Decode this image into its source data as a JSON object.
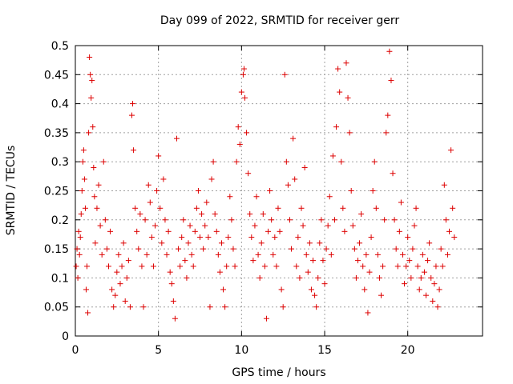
{
  "chart_data": {
    "type": "scatter",
    "title": "Day 099 of 2022, SRMTID for receiver gerr",
    "xlabel": "GPS time / hours",
    "ylabel": "SRMTID / TECUs",
    "xlim": [
      0,
      24.5
    ],
    "ylim": [
      0,
      0.5
    ],
    "xticks": [
      0,
      5,
      10,
      15,
      20
    ],
    "xtick_labels": [
      "0",
      "5",
      "10",
      "15",
      "20"
    ],
    "yticks": [
      0,
      0.05,
      0.1,
      0.15,
      0.2,
      0.25,
      0.3,
      0.35,
      0.4,
      0.45,
      0.5
    ],
    "ytick_labels": [
      "0",
      "0.05",
      "0.1",
      "0.15",
      "0.2",
      "0.25",
      "0.3",
      "0.35",
      "0.4",
      "0.45",
      "0.5"
    ],
    "grid": true,
    "marker": "+",
    "color": "#dd0000",
    "series": [
      {
        "name": "SRMTID",
        "points": [
          [
            0.05,
            0.12
          ],
          [
            0.1,
            0.15
          ],
          [
            0.15,
            0.1
          ],
          [
            0.2,
            0.18
          ],
          [
            0.25,
            0.14
          ],
          [
            0.3,
            0.17
          ],
          [
            0.35,
            0.21
          ],
          [
            0.4,
            0.25
          ],
          [
            0.45,
            0.3
          ],
          [
            0.5,
            0.32
          ],
          [
            0.55,
            0.27
          ],
          [
            0.6,
            0.22
          ],
          [
            0.65,
            0.08
          ],
          [
            0.7,
            0.12
          ],
          [
            0.75,
            0.04
          ],
          [
            0.8,
            0.35
          ],
          [
            0.85,
            0.48
          ],
          [
            0.9,
            0.45
          ],
          [
            0.95,
            0.41
          ],
          [
            1.0,
            0.44
          ],
          [
            1.05,
            0.36
          ],
          [
            1.1,
            0.29
          ],
          [
            1.15,
            0.24
          ],
          [
            1.2,
            0.16
          ],
          [
            1.3,
            0.22
          ],
          [
            1.4,
            0.26
          ],
          [
            1.5,
            0.19
          ],
          [
            1.6,
            0.14
          ],
          [
            1.7,
            0.3
          ],
          [
            1.8,
            0.2
          ],
          [
            1.9,
            0.15
          ],
          [
            2.0,
            0.12
          ],
          [
            2.1,
            0.18
          ],
          [
            2.2,
            0.08
          ],
          [
            2.3,
            0.05
          ],
          [
            2.4,
            0.07
          ],
          [
            2.5,
            0.11
          ],
          [
            2.6,
            0.14
          ],
          [
            2.7,
            0.09
          ],
          [
            2.8,
            0.12
          ],
          [
            2.9,
            0.16
          ],
          [
            3.0,
            0.06
          ],
          [
            3.1,
            0.1
          ],
          [
            3.2,
            0.13
          ],
          [
            3.3,
            0.05
          ],
          [
            3.4,
            0.38
          ],
          [
            3.45,
            0.4
          ],
          [
            3.5,
            0.32
          ],
          [
            3.6,
            0.22
          ],
          [
            3.7,
            0.18
          ],
          [
            3.8,
            0.15
          ],
          [
            3.9,
            0.21
          ],
          [
            4.0,
            0.12
          ],
          [
            4.1,
            0.05
          ],
          [
            4.2,
            0.2
          ],
          [
            4.3,
            0.14
          ],
          [
            4.4,
            0.26
          ],
          [
            4.5,
            0.23
          ],
          [
            4.6,
            0.17
          ],
          [
            4.7,
            0.12
          ],
          [
            4.8,
            0.19
          ],
          [
            4.9,
            0.25
          ],
          [
            5.0,
            0.31
          ],
          [
            5.1,
            0.22
          ],
          [
            5.2,
            0.16
          ],
          [
            5.3,
            0.27
          ],
          [
            5.4,
            0.2
          ],
          [
            5.5,
            0.14
          ],
          [
            5.6,
            0.18
          ],
          [
            5.7,
            0.11
          ],
          [
            5.8,
            0.09
          ],
          [
            5.9,
            0.06
          ],
          [
            6.0,
            0.03
          ],
          [
            6.1,
            0.34
          ],
          [
            6.2,
            0.15
          ],
          [
            6.3,
            0.12
          ],
          [
            6.4,
            0.17
          ],
          [
            6.5,
            0.2
          ],
          [
            6.6,
            0.13
          ],
          [
            6.7,
            0.1
          ],
          [
            6.8,
            0.16
          ],
          [
            6.9,
            0.19
          ],
          [
            7.0,
            0.14
          ],
          [
            7.1,
            0.12
          ],
          [
            7.2,
            0.18
          ],
          [
            7.3,
            0.22
          ],
          [
            7.4,
            0.25
          ],
          [
            7.5,
            0.17
          ],
          [
            7.6,
            0.21
          ],
          [
            7.7,
            0.15
          ],
          [
            7.8,
            0.19
          ],
          [
            7.9,
            0.23
          ],
          [
            8.0,
            0.17
          ],
          [
            8.1,
            0.05
          ],
          [
            8.2,
            0.27
          ],
          [
            8.3,
            0.3
          ],
          [
            8.4,
            0.21
          ],
          [
            8.5,
            0.18
          ],
          [
            8.6,
            0.14
          ],
          [
            8.7,
            0.11
          ],
          [
            8.8,
            0.16
          ],
          [
            8.9,
            0.08
          ],
          [
            9.0,
            0.05
          ],
          [
            9.1,
            0.12
          ],
          [
            9.2,
            0.17
          ],
          [
            9.3,
            0.24
          ],
          [
            9.4,
            0.2
          ],
          [
            9.5,
            0.15
          ],
          [
            9.6,
            0.12
          ],
          [
            9.7,
            0.3
          ],
          [
            9.8,
            0.36
          ],
          [
            9.9,
            0.33
          ],
          [
            10.0,
            0.42
          ],
          [
            10.1,
            0.45
          ],
          [
            10.15,
            0.46
          ],
          [
            10.2,
            0.41
          ],
          [
            10.3,
            0.35
          ],
          [
            10.4,
            0.28
          ],
          [
            10.5,
            0.21
          ],
          [
            10.6,
            0.17
          ],
          [
            10.7,
            0.13
          ],
          [
            10.8,
            0.19
          ],
          [
            10.9,
            0.24
          ],
          [
            11.0,
            0.14
          ],
          [
            11.1,
            0.1
          ],
          [
            11.2,
            0.16
          ],
          [
            11.3,
            0.21
          ],
          [
            11.4,
            0.12
          ],
          [
            11.5,
            0.03
          ],
          [
            11.6,
            0.18
          ],
          [
            11.7,
            0.25
          ],
          [
            11.8,
            0.2
          ],
          [
            11.9,
            0.14
          ],
          [
            12.0,
            0.17
          ],
          [
            12.1,
            0.12
          ],
          [
            12.2,
            0.22
          ],
          [
            12.3,
            0.18
          ],
          [
            12.4,
            0.08
          ],
          [
            12.5,
            0.05
          ],
          [
            12.6,
            0.45
          ],
          [
            12.7,
            0.3
          ],
          [
            12.8,
            0.26
          ],
          [
            12.9,
            0.2
          ],
          [
            13.0,
            0.15
          ],
          [
            13.1,
            0.34
          ],
          [
            13.2,
            0.27
          ],
          [
            13.3,
            0.12
          ],
          [
            13.4,
            0.17
          ],
          [
            13.5,
            0.1
          ],
          [
            13.6,
            0.22
          ],
          [
            13.7,
            0.19
          ],
          [
            13.8,
            0.29
          ],
          [
            13.9,
            0.14
          ],
          [
            14.0,
            0.11
          ],
          [
            14.1,
            0.16
          ],
          [
            14.2,
            0.08
          ],
          [
            14.3,
            0.13
          ],
          [
            14.4,
            0.07
          ],
          [
            14.5,
            0.05
          ],
          [
            14.6,
            0.1
          ],
          [
            14.7,
            0.16
          ],
          [
            14.8,
            0.2
          ],
          [
            14.9,
            0.13
          ],
          [
            15.0,
            0.09
          ],
          [
            15.1,
            0.15
          ],
          [
            15.2,
            0.19
          ],
          [
            15.3,
            0.24
          ],
          [
            15.4,
            0.14
          ],
          [
            15.5,
            0.31
          ],
          [
            15.6,
            0.2
          ],
          [
            15.7,
            0.36
          ],
          [
            15.8,
            0.46
          ],
          [
            15.9,
            0.42
          ],
          [
            16.0,
            0.3
          ],
          [
            16.1,
            0.22
          ],
          [
            16.2,
            0.18
          ],
          [
            16.3,
            0.47
          ],
          [
            16.4,
            0.41
          ],
          [
            16.5,
            0.35
          ],
          [
            16.6,
            0.25
          ],
          [
            16.7,
            0.19
          ],
          [
            16.8,
            0.15
          ],
          [
            16.9,
            0.1
          ],
          [
            17.0,
            0.13
          ],
          [
            17.1,
            0.16
          ],
          [
            17.2,
            0.21
          ],
          [
            17.3,
            0.12
          ],
          [
            17.4,
            0.08
          ],
          [
            17.5,
            0.14
          ],
          [
            17.6,
            0.04
          ],
          [
            17.7,
            0.11
          ],
          [
            17.8,
            0.17
          ],
          [
            17.9,
            0.25
          ],
          [
            18.0,
            0.3
          ],
          [
            18.1,
            0.22
          ],
          [
            18.2,
            0.14
          ],
          [
            18.3,
            0.1
          ],
          [
            18.4,
            0.07
          ],
          [
            18.5,
            0.12
          ],
          [
            18.6,
            0.2
          ],
          [
            18.7,
            0.35
          ],
          [
            18.8,
            0.38
          ],
          [
            18.9,
            0.49
          ],
          [
            19.0,
            0.44
          ],
          [
            19.1,
            0.28
          ],
          [
            19.2,
            0.2
          ],
          [
            19.3,
            0.15
          ],
          [
            19.4,
            0.12
          ],
          [
            19.5,
            0.18
          ],
          [
            19.6,
            0.23
          ],
          [
            19.7,
            0.14
          ],
          [
            19.8,
            0.09
          ],
          [
            19.9,
            0.12
          ],
          [
            20.0,
            0.17
          ],
          [
            20.1,
            0.13
          ],
          [
            20.2,
            0.1
          ],
          [
            20.3,
            0.15
          ],
          [
            20.4,
            0.19
          ],
          [
            20.5,
            0.22
          ],
          [
            20.6,
            0.12
          ],
          [
            20.7,
            0.08
          ],
          [
            20.8,
            0.1
          ],
          [
            20.9,
            0.14
          ],
          [
            21.0,
            0.11
          ],
          [
            21.1,
            0.07
          ],
          [
            21.2,
            0.13
          ],
          [
            21.3,
            0.16
          ],
          [
            21.4,
            0.1
          ],
          [
            21.5,
            0.06
          ],
          [
            21.6,
            0.09
          ],
          [
            21.7,
            0.12
          ],
          [
            21.8,
            0.05
          ],
          [
            21.9,
            0.08
          ],
          [
            22.0,
            0.15
          ],
          [
            22.1,
            0.12
          ],
          [
            22.2,
            0.26
          ],
          [
            22.3,
            0.2
          ],
          [
            22.4,
            0.14
          ],
          [
            22.5,
            0.18
          ],
          [
            22.6,
            0.32
          ],
          [
            22.7,
            0.22
          ],
          [
            22.8,
            0.17
          ]
        ]
      }
    ]
  }
}
